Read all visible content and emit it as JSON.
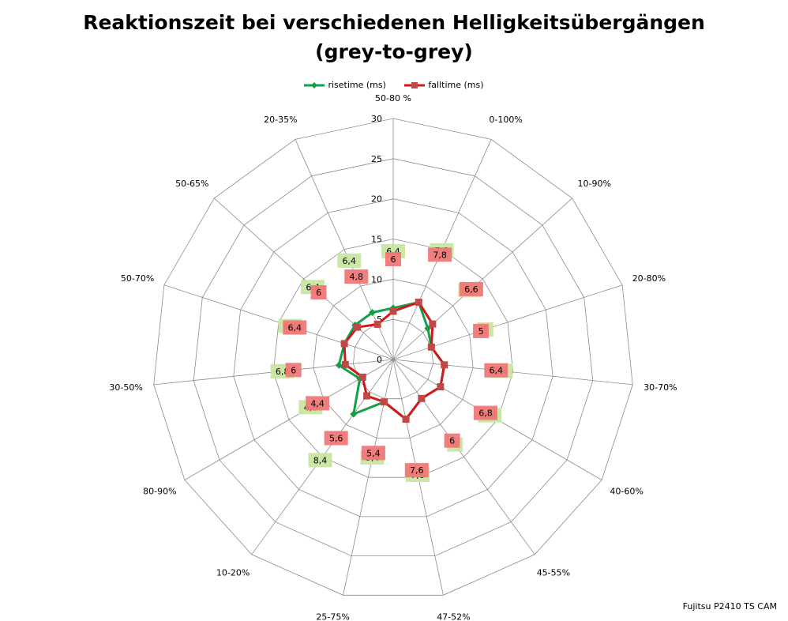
{
  "chart_data": {
    "type": "radar",
    "title": "Reaktionszeit bei verschiedenen Helligkeitsübergängen",
    "subtitle": "(grey-to-grey)",
    "categories": [
      "50-80 %",
      "0-100%",
      "10-90%",
      "20-80%",
      "30-70%",
      "40-60%",
      "45-55%",
      "47-52%",
      "25-75%",
      "10-20%",
      "80-90%",
      "30-50%",
      "50-70%",
      "50-65%",
      "20-35%"
    ],
    "axis": {
      "min": 0,
      "max": 30,
      "ticks": [
        0,
        5,
        10,
        15,
        20,
        25,
        30
      ]
    },
    "series": [
      {
        "name": "risetime (ms)",
        "color": "#14a04a",
        "label_bg": "#c8e6a0",
        "values": [
          6.4,
          7.8,
          5.8,
          5.0,
          6.4,
          6.8,
          6.0,
          7.6,
          5.4,
          8.4,
          4.8,
          6.8,
          6.4,
          6.4,
          6.4
        ],
        "labels": [
          "6,4",
          "7,8",
          "5,8",
          "5",
          "6,4",
          "6,8",
          "6",
          "7,6",
          "5,4",
          "8,4",
          "4,8",
          "6,8",
          "6,4",
          "6,4",
          "6,4"
        ]
      },
      {
        "name": "falltime (ms)",
        "color": "#d01818",
        "label_bg": "#f07878",
        "values": [
          6.0,
          7.8,
          6.6,
          5.0,
          6.4,
          6.8,
          6.0,
          7.6,
          5.4,
          5.6,
          4.4,
          6.0,
          6.4,
          6.0,
          4.8
        ],
        "labels": [
          "6",
          "7,8",
          "6,6",
          "5",
          "6,4",
          "6,8",
          "6",
          "7,6",
          "5,4",
          "5,6",
          "4,4",
          "6",
          "6,4",
          "6",
          "4,8"
        ]
      }
    ]
  },
  "footer": "Fujitsu P2410 TS CAM"
}
